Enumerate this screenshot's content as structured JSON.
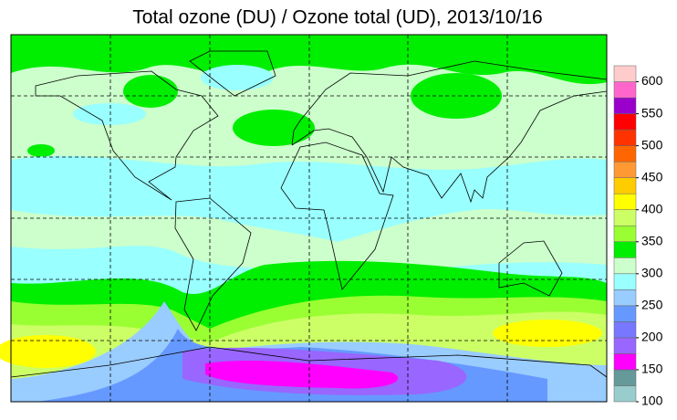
{
  "title": "Total ozone (DU) / Ozone total (UD), 2013/10/16",
  "colorbar": {
    "bins": [
      100,
      125,
      150,
      175,
      200,
      225,
      250,
      275,
      300,
      325,
      350,
      375,
      400,
      425,
      450,
      475,
      500,
      525,
      550,
      575,
      600,
      625
    ],
    "colors": [
      "#99cccc",
      "#669999",
      "#ff00ff",
      "#9966ff",
      "#7777ff",
      "#6699ff",
      "#99ccff",
      "#99ffff",
      "#ccffcc",
      "#00ee00",
      "#99ff33",
      "#ccff66",
      "#ffff00",
      "#ffcc00",
      "#ff9933",
      "#ff6600",
      "#ff3300",
      "#ff0000",
      "#9900cc",
      "#ff66cc",
      "#ffcccc"
    ],
    "ticks": [
      100,
      150,
      200,
      250,
      300,
      350,
      400,
      450,
      500,
      550,
      600
    ]
  }
}
